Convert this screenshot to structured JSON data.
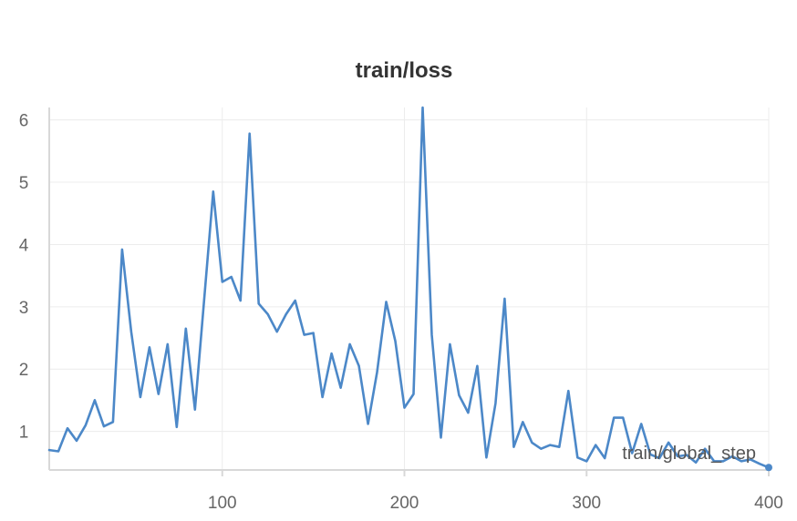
{
  "chart_data": {
    "type": "line",
    "title": "train/loss",
    "xlabel": "train/global_step",
    "ylabel": "",
    "xlim": [
      5,
      400
    ],
    "ylim": [
      0.38,
      6.2
    ],
    "x_ticks": [
      100,
      200,
      300,
      400
    ],
    "y_ticks": [
      1,
      2,
      3,
      4,
      5,
      6
    ],
    "grid": true,
    "legend": "none",
    "series": [
      {
        "color": "#4c88c8",
        "x": [
          5,
          10,
          15,
          20,
          25,
          30,
          35,
          40,
          45,
          50,
          55,
          60,
          65,
          70,
          75,
          80,
          85,
          90,
          95,
          100,
          105,
          110,
          115,
          120,
          125,
          130,
          135,
          140,
          145,
          150,
          155,
          160,
          165,
          170,
          175,
          180,
          185,
          190,
          195,
          200,
          205,
          210,
          215,
          220,
          225,
          230,
          235,
          240,
          245,
          250,
          255,
          260,
          265,
          270,
          275,
          280,
          285,
          290,
          295,
          300,
          305,
          310,
          315,
          320,
          325,
          330,
          335,
          340,
          345,
          350,
          355,
          360,
          365,
          370,
          375,
          380,
          385,
          390,
          395,
          400
        ],
        "y": [
          0.7,
          0.68,
          1.05,
          0.85,
          1.1,
          1.5,
          1.08,
          1.15,
          3.92,
          2.6,
          1.55,
          2.35,
          1.6,
          2.4,
          1.07,
          2.65,
          1.35,
          3.1,
          4.85,
          3.4,
          3.48,
          3.1,
          5.78,
          3.05,
          2.88,
          2.6,
          2.88,
          3.1,
          2.55,
          2.58,
          1.55,
          2.25,
          1.7,
          2.4,
          2.05,
          1.12,
          1.95,
          3.08,
          2.45,
          1.38,
          1.6,
          6.2,
          2.55,
          0.9,
          2.4,
          1.58,
          1.3,
          2.05,
          0.58,
          1.45,
          3.13,
          0.75,
          1.15,
          0.82,
          0.72,
          0.78,
          0.75,
          1.65,
          0.58,
          0.52,
          0.78,
          0.57,
          1.22,
          1.22,
          0.65,
          1.12,
          0.63,
          0.57,
          0.82,
          0.6,
          0.62,
          0.5,
          0.72,
          0.52,
          0.52,
          0.6,
          0.52,
          0.55,
          0.48,
          0.42
        ]
      }
    ]
  }
}
